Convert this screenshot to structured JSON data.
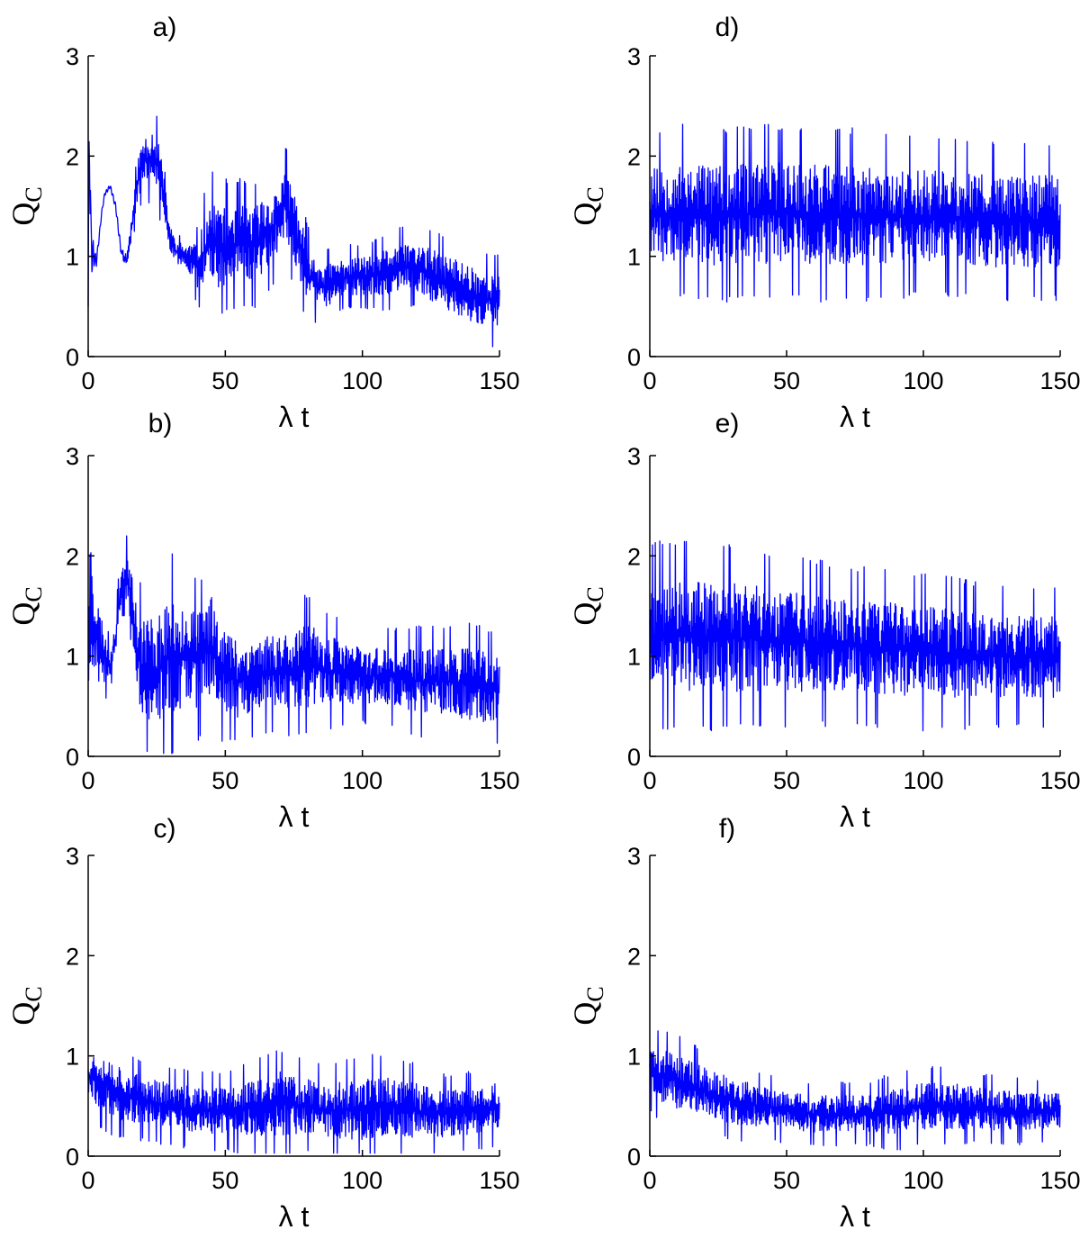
{
  "figure": {
    "panel_count": 6,
    "line_color": "#0000ff",
    "axis_color": "#000000"
  },
  "chart_data": [
    {
      "type": "line",
      "panel_label": "a)",
      "xlabel": "λ t",
      "ylabel": "Q",
      "ylabel_sub": "C",
      "xlim": [
        0,
        150
      ],
      "ylim": [
        0,
        3
      ],
      "xticks": [
        "0",
        "50",
        "100",
        "150"
      ],
      "yticks": [
        "0",
        "1",
        "2",
        "3"
      ],
      "series": [
        {
          "x": [
            0,
            0.5,
            1,
            2,
            3,
            4,
            5,
            6,
            8,
            10,
            12,
            14,
            16,
            18,
            20,
            22,
            24,
            26,
            28,
            30,
            32,
            35,
            38,
            40,
            44,
            48,
            52,
            56,
            60,
            64,
            68,
            72,
            75,
            78,
            80,
            82,
            86,
            90,
            95,
            100,
            105,
            110,
            115,
            120,
            125,
            130,
            135,
            140,
            145,
            150
          ],
          "y": [
            0.5,
            2.45,
            1.1,
            1.0,
            0.95,
            1.2,
            1.45,
            1.62,
            1.7,
            1.5,
            1.05,
            0.95,
            1.3,
            1.75,
            1.95,
            1.98,
            2.0,
            1.85,
            1.5,
            1.15,
            1.05,
            1.0,
            0.95,
            0.9,
            1.15,
            1.1,
            1.1,
            1.15,
            1.1,
            1.2,
            1.3,
            1.55,
            1.3,
            1.0,
            0.85,
            0.75,
            0.7,
            0.75,
            0.8,
            0.8,
            0.82,
            0.85,
            0.9,
            0.88,
            0.82,
            0.75,
            0.68,
            0.62,
            0.58,
            0.55
          ],
          "amp": [
            0.4,
            0.8,
            0.35,
            0.1,
            0.05,
            0.03,
            0.02,
            0.02,
            0.02,
            0.03,
            0.05,
            0.08,
            0.12,
            0.22,
            0.25,
            0.28,
            0.3,
            0.3,
            0.22,
            0.15,
            0.12,
            0.12,
            0.2,
            0.25,
            0.45,
            0.45,
            0.4,
            0.4,
            0.4,
            0.4,
            0.35,
            0.35,
            0.4,
            0.35,
            0.3,
            0.25,
            0.25,
            0.2,
            0.2,
            0.2,
            0.22,
            0.25,
            0.25,
            0.25,
            0.28,
            0.28,
            0.3,
            0.3,
            0.3,
            0.3
          ],
          "smooth_until": 12,
          "seed": 11
        }
      ]
    },
    {
      "type": "line",
      "panel_label": "b)",
      "xlabel": "λ t",
      "ylabel": "Q",
      "ylabel_sub": "C",
      "xlim": [
        0,
        150
      ],
      "ylim": [
        0,
        3
      ],
      "xticks": [
        "0",
        "50",
        "100",
        "150"
      ],
      "yticks": [
        "0",
        "1",
        "2",
        "3"
      ],
      "series": [
        {
          "x": [
            0,
            1,
            2,
            4,
            6,
            8,
            10,
            12,
            14,
            16,
            18,
            20,
            25,
            30,
            35,
            40,
            45,
            50,
            55,
            60,
            70,
            80,
            90,
            100,
            110,
            120,
            130,
            140,
            150
          ],
          "y": [
            0.8,
            1.8,
            1.3,
            1.1,
            1.0,
            0.9,
            1.2,
            1.7,
            1.8,
            1.6,
            1.0,
            0.9,
            0.85,
            1.0,
            1.0,
            0.95,
            1.1,
            0.85,
            0.75,
            0.8,
            0.85,
            0.9,
            0.85,
            0.8,
            0.8,
            0.75,
            0.75,
            0.72,
            0.65
          ],
          "amp": [
            0.5,
            0.9,
            0.5,
            0.4,
            0.3,
            0.15,
            0.2,
            0.2,
            0.25,
            0.35,
            0.5,
            0.55,
            0.55,
            0.65,
            0.6,
            0.5,
            0.55,
            0.45,
            0.4,
            0.4,
            0.4,
            0.45,
            0.35,
            0.3,
            0.3,
            0.35,
            0.35,
            0.4,
            0.35
          ],
          "smooth_until": 0,
          "seed": 23
        }
      ]
    },
    {
      "type": "line",
      "panel_label": "c)",
      "xlabel": "λ t",
      "ylabel": "Q",
      "ylabel_sub": "C",
      "xlim": [
        0,
        150
      ],
      "ylim": [
        0,
        3
      ],
      "xticks": [
        "0",
        "50",
        "100",
        "150"
      ],
      "yticks": [
        "0",
        "1",
        "2",
        "3"
      ],
      "series": [
        {
          "x": [
            0,
            5,
            10,
            20,
            30,
            40,
            50,
            60,
            70,
            80,
            90,
            100,
            110,
            120,
            130,
            140,
            150
          ],
          "y": [
            0.8,
            0.75,
            0.65,
            0.55,
            0.5,
            0.45,
            0.45,
            0.48,
            0.52,
            0.5,
            0.45,
            0.48,
            0.5,
            0.45,
            0.42,
            0.45,
            0.5
          ],
          "amp": [
            0.25,
            0.3,
            0.3,
            0.25,
            0.25,
            0.25,
            0.25,
            0.3,
            0.35,
            0.3,
            0.3,
            0.35,
            0.3,
            0.3,
            0.25,
            0.25,
            0.25
          ],
          "smooth_until": 0,
          "seed": 37
        }
      ]
    },
    {
      "type": "line",
      "panel_label": "d)",
      "xlabel": "λ t",
      "ylabel": "Q",
      "ylabel_sub": "C",
      "xlim": [
        0,
        150
      ],
      "ylim": [
        0,
        3
      ],
      "xticks": [
        "0",
        "50",
        "100",
        "150"
      ],
      "yticks": [
        "0",
        "1",
        "2",
        "3"
      ],
      "series": [
        {
          "x": [
            0,
            10,
            25,
            50,
            75,
            100,
            125,
            150
          ],
          "y": [
            1.4,
            1.45,
            1.4,
            1.45,
            1.4,
            1.4,
            1.35,
            1.35
          ],
          "amp": [
            0.55,
            0.55,
            0.55,
            0.55,
            0.55,
            0.5,
            0.5,
            0.5
          ],
          "smooth_until": 0,
          "seed": 53
        }
      ]
    },
    {
      "type": "line",
      "panel_label": "e)",
      "xlabel": "λ t",
      "ylabel": "Q",
      "ylabel_sub": "C",
      "xlim": [
        0,
        150
      ],
      "ylim": [
        0,
        3
      ],
      "xticks": [
        "0",
        "50",
        "100",
        "150"
      ],
      "yticks": [
        "0",
        "1",
        "2",
        "3"
      ],
      "series": [
        {
          "x": [
            0,
            10,
            25,
            50,
            75,
            100,
            125,
            150
          ],
          "y": [
            1.2,
            1.2,
            1.2,
            1.15,
            1.1,
            1.05,
            1.0,
            1.0
          ],
          "amp": [
            0.6,
            0.6,
            0.6,
            0.55,
            0.5,
            0.5,
            0.45,
            0.45
          ],
          "smooth_until": 0,
          "seed": 71
        }
      ]
    },
    {
      "type": "line",
      "panel_label": "f)",
      "xlabel": "λ t",
      "ylabel": "Q",
      "ylabel_sub": "C",
      "xlim": [
        0,
        150
      ],
      "ylim": [
        0,
        3
      ],
      "xticks": [
        "0",
        "50",
        "100",
        "150"
      ],
      "yticks": [
        "0",
        "1",
        "2",
        "3"
      ],
      "series": [
        {
          "x": [
            0,
            5,
            10,
            20,
            30,
            40,
            50,
            60,
            70,
            80,
            90,
            100,
            110,
            120,
            130,
            140,
            150
          ],
          "y": [
            0.85,
            0.8,
            0.75,
            0.65,
            0.55,
            0.5,
            0.45,
            0.42,
            0.42,
            0.42,
            0.45,
            0.5,
            0.5,
            0.48,
            0.45,
            0.45,
            0.45
          ],
          "amp": [
            0.25,
            0.3,
            0.3,
            0.25,
            0.25,
            0.22,
            0.2,
            0.2,
            0.2,
            0.2,
            0.25,
            0.25,
            0.25,
            0.22,
            0.22,
            0.2,
            0.2
          ],
          "smooth_until": 0,
          "seed": 89
        }
      ]
    }
  ]
}
